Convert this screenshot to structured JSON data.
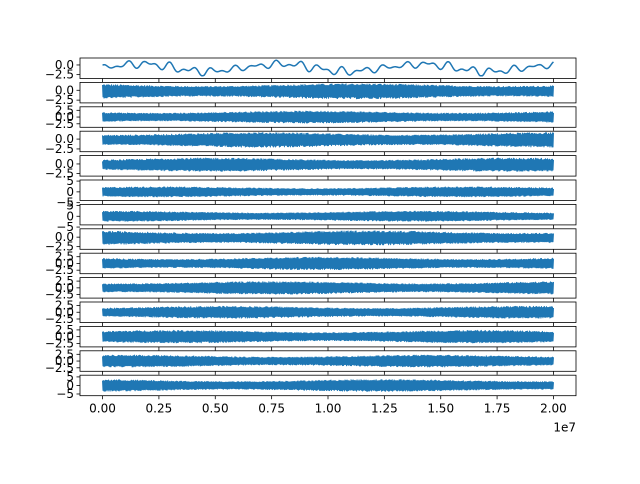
{
  "chart_data": {
    "type": "line",
    "title": "",
    "xlabel": "",
    "ylabel": "",
    "series_color": "#1f77b4",
    "grid": false,
    "xlim": [
      -1000000,
      21000000
    ],
    "xticks": [
      {
        "value": 0,
        "label": "0.00"
      },
      {
        "value": 2500000,
        "label": "0.25"
      },
      {
        "value": 5000000,
        "label": "0.50"
      },
      {
        "value": 7500000,
        "label": "0.75"
      },
      {
        "value": 10000000,
        "label": "1.00"
      },
      {
        "value": 12500000,
        "label": "1.25"
      },
      {
        "value": 15000000,
        "label": "1.50"
      },
      {
        "value": 17500000,
        "label": "1.75"
      },
      {
        "value": 20000000,
        "label": "2.00"
      }
    ],
    "x_offset_label": "1e7",
    "x_range": [
      0,
      20000000
    ],
    "subplots": [
      {
        "kind": "smooth",
        "ylim": [
          -3.5,
          1.8
        ],
        "band": [
          -2.8,
          1.4
        ],
        "yticks": [
          {
            "value": 0,
            "label": "0.0"
          },
          {
            "value": -2.5,
            "label": "−2.5"
          }
        ]
      },
      {
        "kind": "dense",
        "ylim": [
          -3.2,
          2.0
        ],
        "band": [
          -1.9,
          1.4
        ],
        "yticks": [
          {
            "value": 0,
            "label": "0.0"
          },
          {
            "value": -2.5,
            "label": "−2.5"
          }
        ]
      },
      {
        "kind": "dense",
        "ylim": [
          -3.8,
          3.8
        ],
        "band": [
          -1.9,
          1.9
        ],
        "yticks": [
          {
            "value": 2.5,
            "label": "2.5"
          },
          {
            "value": 0,
            "label": "0.0"
          },
          {
            "value": -2.5,
            "label": "−2.5"
          }
        ]
      },
      {
        "kind": "dense",
        "ylim": [
          -3.2,
          2.0
        ],
        "band": [
          -1.8,
          1.4
        ],
        "yticks": [
          {
            "value": 0,
            "label": "0.0"
          },
          {
            "value": -2.5,
            "label": "−2.5"
          }
        ]
      },
      {
        "kind": "dense",
        "ylim": [
          -3.2,
          2.2
        ],
        "band": [
          -1.7,
          1.3
        ],
        "yticks": [
          {
            "value": 0,
            "label": "0.0"
          },
          {
            "value": -2.5,
            "label": "−2.5"
          }
        ]
      },
      {
        "kind": "dense",
        "ylim": [
          -4.0,
          5.5
        ],
        "band": [
          -2.0,
          2.0
        ],
        "yticks": [
          {
            "value": 5,
            "label": "5"
          },
          {
            "value": 0,
            "label": "0"
          },
          {
            "value": -5,
            "label": "−5"
          }
        ]
      },
      {
        "kind": "dense",
        "ylim": [
          -4.0,
          5.5
        ],
        "band": [
          -2.0,
          2.0
        ],
        "yticks": [
          {
            "value": 5,
            "label": "5"
          },
          {
            "value": 0,
            "label": "0"
          },
          {
            "value": -5,
            "label": "−5"
          }
        ]
      },
      {
        "kind": "dense",
        "ylim": [
          -3.2,
          2.2
        ],
        "band": [
          -1.8,
          1.4
        ],
        "yticks": [
          {
            "value": 0,
            "label": "0.0"
          },
          {
            "value": -2.5,
            "label": "−2.5"
          }
        ]
      },
      {
        "kind": "dense",
        "ylim": [
          -3.8,
          3.8
        ],
        "band": [
          -2.0,
          2.0
        ],
        "yticks": [
          {
            "value": 2.5,
            "label": "2.5"
          },
          {
            "value": 0,
            "label": "0.0"
          },
          {
            "value": -2.5,
            "label": "−2.5"
          }
        ]
      },
      {
        "kind": "dense",
        "ylim": [
          -3.8,
          3.8
        ],
        "band": [
          -2.0,
          2.0
        ],
        "yticks": [
          {
            "value": 2.5,
            "label": "2.5"
          },
          {
            "value": 0,
            "label": "0.0"
          },
          {
            "value": -2.5,
            "label": "−2.5"
          }
        ]
      },
      {
        "kind": "dense",
        "ylim": [
          -3.8,
          3.8
        ],
        "band": [
          -1.9,
          1.9
        ],
        "yticks": [
          {
            "value": 2.5,
            "label": "2.5"
          },
          {
            "value": 0,
            "label": "0.0"
          },
          {
            "value": -2.5,
            "label": "−2.5"
          }
        ]
      },
      {
        "kind": "dense",
        "ylim": [
          -3.8,
          3.8
        ],
        "band": [
          -2.0,
          2.0
        ],
        "yticks": [
          {
            "value": 2.5,
            "label": "2.5"
          },
          {
            "value": 0,
            "label": "0.0"
          },
          {
            "value": -2.5,
            "label": "−2.5"
          }
        ]
      },
      {
        "kind": "dense",
        "ylim": [
          -3.8,
          3.8
        ],
        "band": [
          -1.9,
          1.9
        ],
        "yticks": [
          {
            "value": 2.5,
            "label": "2.5"
          },
          {
            "value": 0,
            "label": "0.0"
          },
          {
            "value": -2.5,
            "label": "−2.5"
          }
        ]
      },
      {
        "kind": "dense",
        "ylim": [
          -6.0,
          6.0
        ],
        "band": [
          -3.0,
          3.0
        ],
        "yticks": [
          {
            "value": 5,
            "label": "5"
          },
          {
            "value": 0,
            "label": "0"
          },
          {
            "value": -5,
            "label": "−5"
          }
        ]
      }
    ]
  }
}
